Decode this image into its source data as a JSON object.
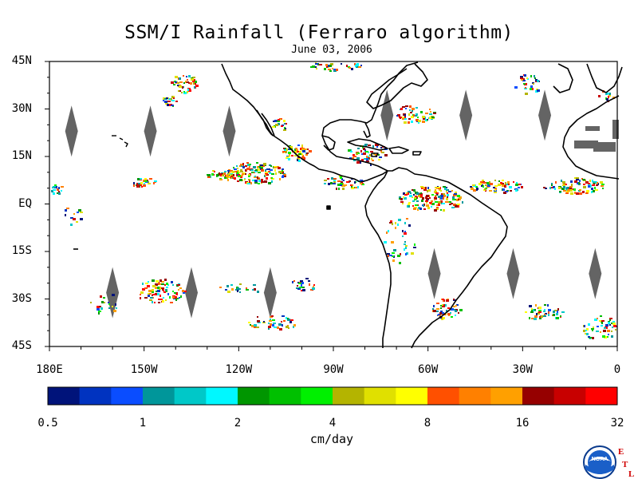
{
  "title": "SSM/I Rainfall (Ferraro algorithm)",
  "date": "June 03, 2006",
  "map": {
    "lat_labels": [
      {
        "text": "45N",
        "lat": 45
      },
      {
        "text": "30N",
        "lat": 30
      },
      {
        "text": "15N",
        "lat": 15
      },
      {
        "text": "EQ",
        "lat": 0
      },
      {
        "text": "15S",
        "lat": -15
      },
      {
        "text": "30S",
        "lat": -30
      },
      {
        "text": "45S",
        "lat": -45
      }
    ],
    "lon_labels": [
      {
        "text": "180E",
        "lon": -180
      },
      {
        "text": "150W",
        "lon": -150
      },
      {
        "text": "120W",
        "lon": -120
      },
      {
        "text": "90W",
        "lon": -90
      },
      {
        "text": "60W",
        "lon": -60
      },
      {
        "text": "30W",
        "lon": -30
      },
      {
        "text": "0",
        "lon": 0
      }
    ],
    "lat_range": [
      -45,
      45
    ],
    "lon_range": [
      -180,
      0
    ],
    "no_data_color": "#646464",
    "coastline_color": "#000000",
    "coastline_note": "Americas continents, Caribbean islands, Hawaii, west Africa edge"
  },
  "colorbar": {
    "colors": [
      "#00137a",
      "#0033c0",
      "#0a4dff",
      "#00969a",
      "#00c8c8",
      "#00f8ff",
      "#009600",
      "#00c000",
      "#00f000",
      "#b4b400",
      "#e0e000",
      "#ffff00",
      "#ff5000",
      "#ff8000",
      "#ffa000",
      "#960000",
      "#c80000",
      "#ff0000"
    ],
    "tick_labels": [
      "0.5",
      "1",
      "2",
      "4",
      "8",
      "16",
      "32"
    ],
    "units": "cm/day"
  },
  "logo": {
    "name": "NOAA",
    "side_letters": [
      "E",
      "T",
      "L"
    ],
    "side_color": "#d00000"
  }
}
